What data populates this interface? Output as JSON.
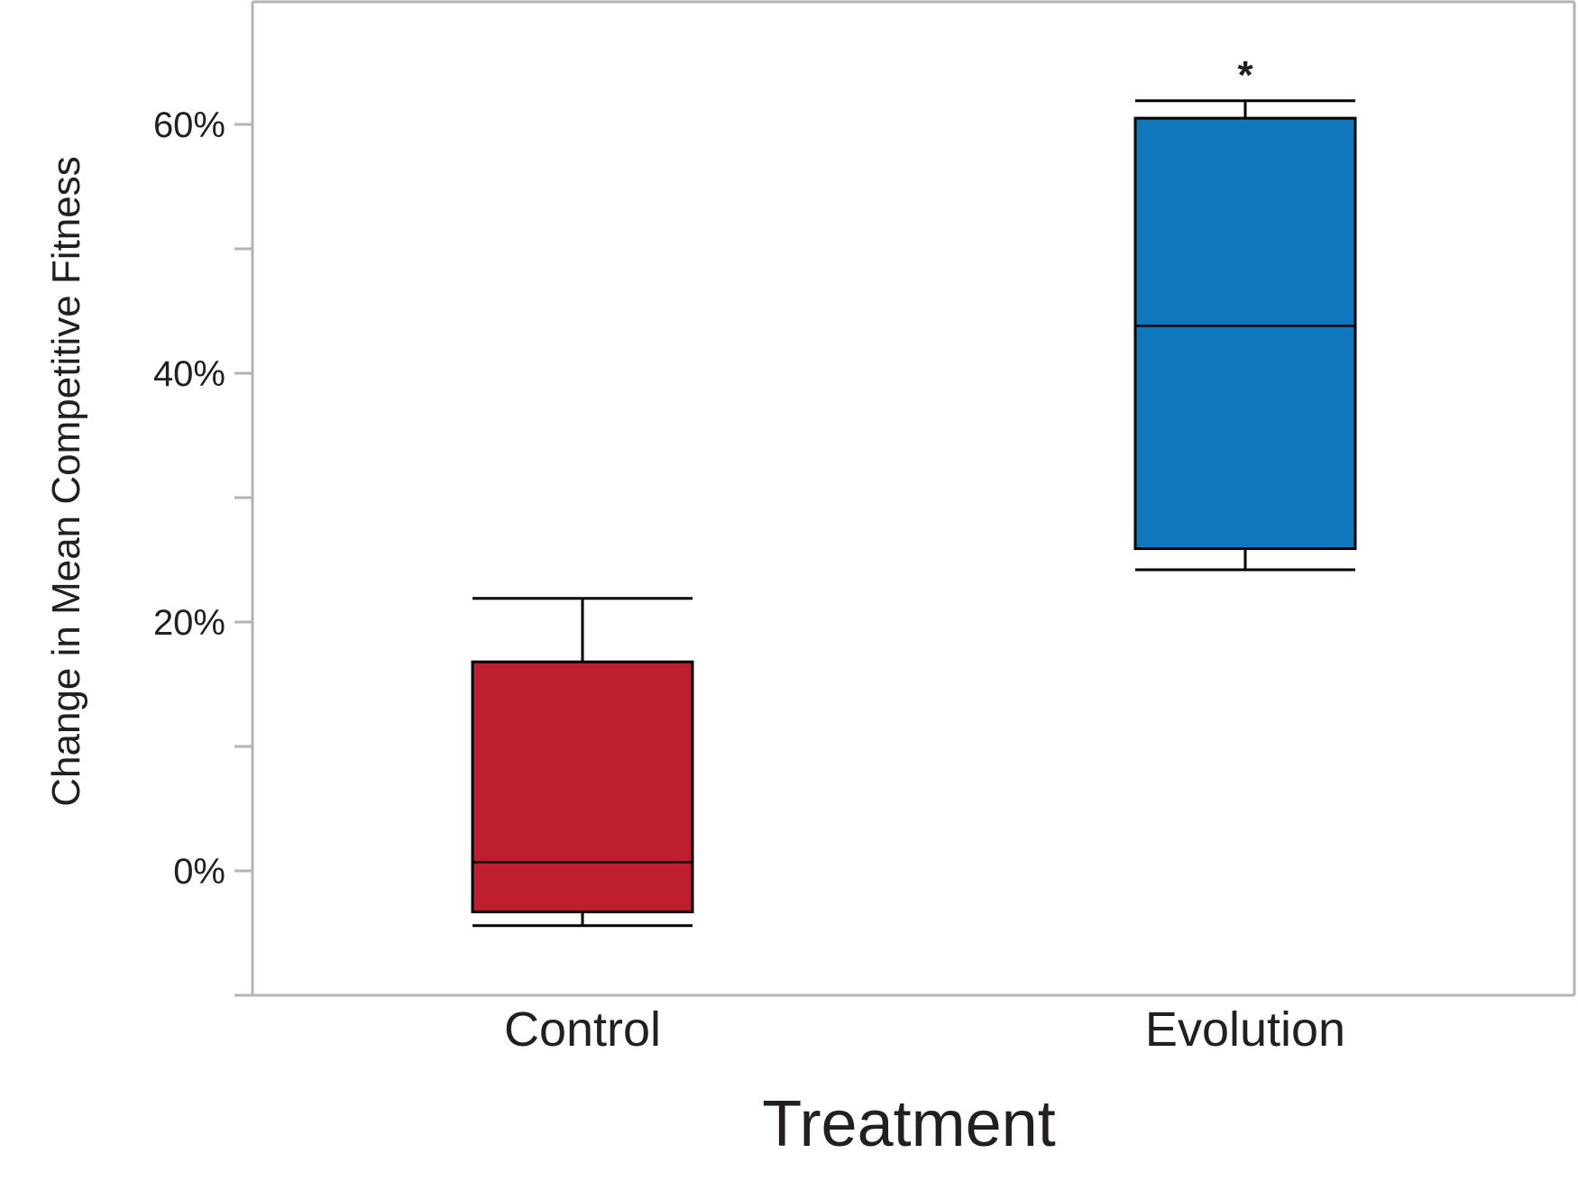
{
  "chart_data": {
    "type": "box",
    "title": "",
    "xlabel": "Treatment",
    "ylabel": "Change in Mean Competitive Fitness",
    "ylim": [
      -10,
      70
    ],
    "yticks": [
      {
        "value": 0,
        "label": "0%"
      },
      {
        "value": 10,
        "label": ""
      },
      {
        "value": 20,
        "label": "20%"
      },
      {
        "value": 30,
        "label": ""
      },
      {
        "value": 40,
        "label": "40%"
      },
      {
        "value": 50,
        "label": ""
      },
      {
        "value": 60,
        "label": "60%"
      },
      {
        "value": -10,
        "label": ""
      }
    ],
    "grid": false,
    "categories": [
      "Control",
      "Evolution"
    ],
    "boxes": [
      {
        "category": "Control",
        "whisker_low": -4.4,
        "q1": -3.3,
        "median": 0.7,
        "q3": 16.8,
        "whisker_high": 21.9,
        "color": "#be1e2d",
        "annotation": ""
      },
      {
        "category": "Evolution",
        "whisker_low": 24.2,
        "q1": 25.9,
        "median": 43.8,
        "q3": 60.5,
        "whisker_high": 61.9,
        "color": "#1177bd",
        "annotation": "*"
      }
    ]
  }
}
